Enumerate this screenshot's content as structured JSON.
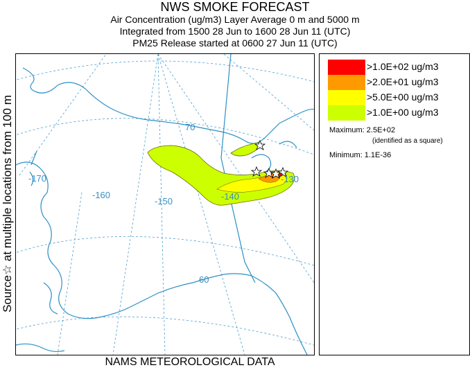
{
  "header": {
    "title": "NWS SMOKE FORECAST",
    "line2": "Air Concentration (ug/m3) Layer Average    0 m and  5000 m",
    "line3": "Integrated from 1500 28 Jun to 1600 28 Jun 11 (UTC)",
    "line4": "PM25 Release started at 0600 27 Jun 11 (UTC)"
  },
  "side_label": "Source☆ at multiple locations  from  100 m",
  "footer": "NAMS METEOROLOGICAL DATA",
  "map": {
    "longitude_labels": [
      "-170",
      "-160",
      "-150",
      "-140",
      "-130"
    ],
    "latitude_labels": [
      "70",
      "60"
    ],
    "colors": {
      "coast": "#2a8fc4",
      "grid": "#4a9fd0"
    }
  },
  "legend": {
    "items": [
      {
        "label": ">1.0E+02 ug/m3",
        "color": "#ff0000"
      },
      {
        "label": ">2.0E+01 ug/m3",
        "color": "#ff9900"
      },
      {
        "label": ">5.0E+00 ug/m3",
        "color": "#ffff00"
      },
      {
        "label": ">1.0E+00 ug/m3",
        "color": "#ccff00"
      }
    ],
    "maximum": "Maximum: 2.5E+02",
    "maximum_note": "(identified as a square)",
    "minimum": "Minimum: 1.1E-36"
  }
}
